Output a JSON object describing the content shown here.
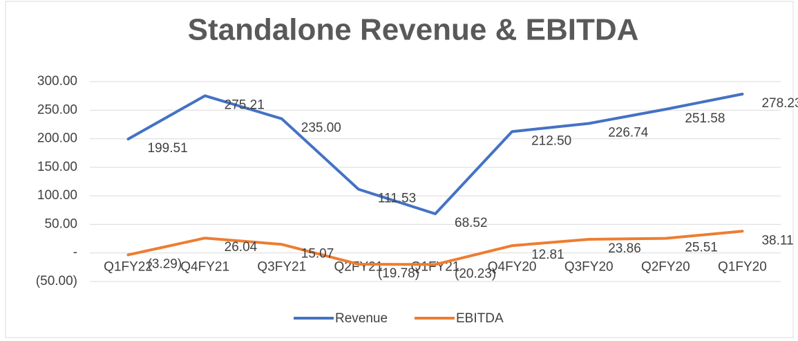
{
  "chart_data": {
    "type": "line",
    "title": "Standalone Revenue & EBITDA",
    "categories": [
      "Q1FY22",
      "Q4FY21",
      "Q3FY21",
      "Q2FY21",
      "Q1FY21",
      "Q4FY20",
      "Q3FY20",
      "Q2FY20",
      "Q1FY20"
    ],
    "series": [
      {
        "name": "Revenue",
        "color": "#4472c4",
        "values": [
          199.51,
          275.21,
          235.0,
          111.53,
          68.52,
          212.5,
          226.74,
          251.58,
          278.23
        ],
        "value_labels": [
          "199.51",
          "275.21",
          "235.00",
          "111.53",
          "68.52",
          "212.50",
          "226.74",
          "251.58",
          "278.23"
        ]
      },
      {
        "name": "EBITDA",
        "color": "#ed7d31",
        "values": [
          -3.29,
          26.04,
          15.07,
          -19.78,
          -20.23,
          12.81,
          23.86,
          25.51,
          38.11
        ],
        "value_labels": [
          "(3.29)",
          "26.04",
          "15.07",
          "(19.78)",
          "(20.23)",
          "12.81",
          "23.86",
          "25.51",
          "38.11"
        ]
      }
    ],
    "ylim": [
      -50,
      300
    ],
    "yticks": [
      {
        "value": -50,
        "label": "(50.00)"
      },
      {
        "value": 0,
        "label": "-"
      },
      {
        "value": 50,
        "label": "50.00"
      },
      {
        "value": 100,
        "label": "100.00"
      },
      {
        "value": 150,
        "label": "150.00"
      },
      {
        "value": 200,
        "label": "200.00"
      },
      {
        "value": 250,
        "label": "250.00"
      },
      {
        "value": 300,
        "label": "300.00"
      }
    ],
    "grid": true,
    "legend": "bottom"
  }
}
